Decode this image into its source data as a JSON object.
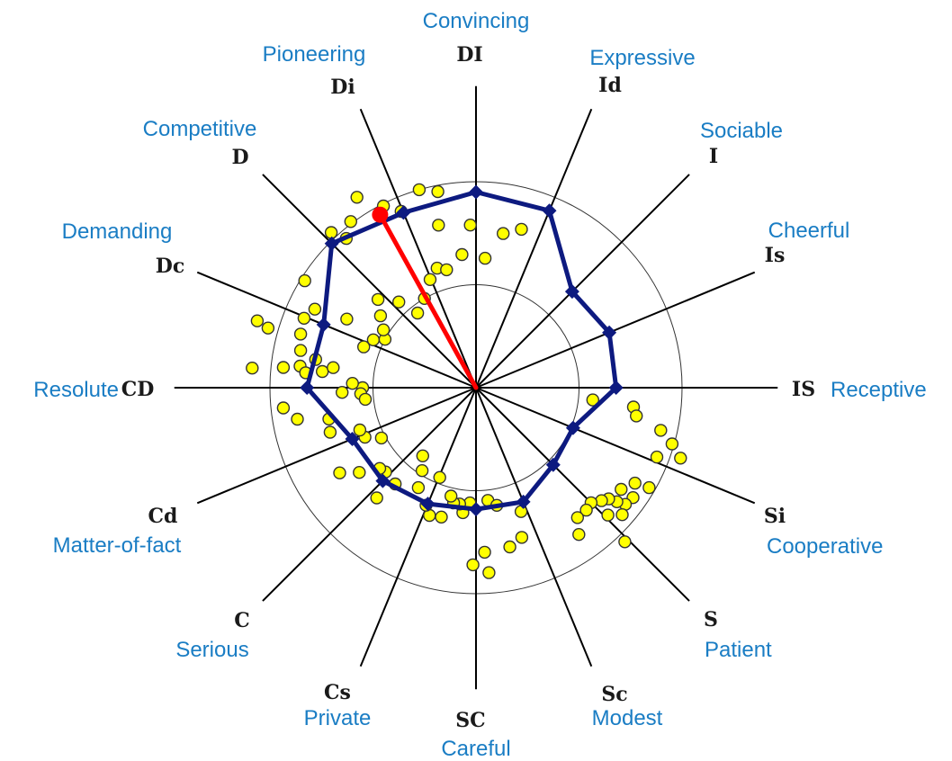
{
  "chart_data": {
    "type": "scatter",
    "subtype": "radar-scatter",
    "title": "",
    "axes": [
      {
        "code": "DI",
        "label": "Convincing"
      },
      {
        "code": "Id",
        "label": "Expressive"
      },
      {
        "code": "I",
        "label": "Sociable"
      },
      {
        "code": "Is",
        "label": "Cheerful"
      },
      {
        "code": "IS",
        "label": "Receptive"
      },
      {
        "code": "Si",
        "label": "Cooperative"
      },
      {
        "code": "S",
        "label": "Patient"
      },
      {
        "code": "Sc",
        "label": "Modest"
      },
      {
        "code": "SC",
        "label": "Careful"
      },
      {
        "code": "Cs",
        "label": "Private"
      },
      {
        "code": "C",
        "label": "Serious"
      },
      {
        "code": "Cd",
        "label": "Matter-of-fact"
      },
      {
        "code": "CD",
        "label": "Resolute"
      },
      {
        "code": "Dc",
        "label": "Demanding"
      },
      {
        "code": "D",
        "label": "Competitive"
      },
      {
        "code": "Di",
        "label": "Pioneering"
      }
    ],
    "start_angle_deg": 90,
    "direction": "clockwise",
    "rings": [
      0.5,
      1.0
    ],
    "max_radius": 1.2,
    "profile": [
      0.95,
      0.93,
      0.66,
      0.7,
      0.68,
      0.51,
      0.53,
      0.6,
      0.59,
      0.61,
      0.64,
      0.65,
      0.82,
      0.8,
      0.99,
      0.92
    ],
    "highlight": {
      "angle_deg": 119,
      "r": 0.96
    },
    "points": [
      [
        106,
        1.0
      ],
      [
        101,
        0.97
      ],
      [
        113,
        0.93
      ],
      [
        103,
        0.81
      ],
      [
        117,
        0.99
      ],
      [
        122,
        1.09
      ],
      [
        127,
        1.01
      ],
      [
        131,
        0.96
      ],
      [
        133,
        1.03
      ],
      [
        148,
        0.98
      ],
      [
        158,
        0.9
      ],
      [
        154,
        0.87
      ],
      [
        152,
        0.71
      ],
      [
        163,
        0.89
      ],
      [
        168,
        0.87
      ],
      [
        173,
        0.86
      ],
      [
        174,
        0.94
      ],
      [
        175,
        1.09
      ],
      [
        -6,
        0.57
      ],
      [
        -7,
        0.77
      ],
      [
        -10,
        0.79
      ],
      [
        -13,
        0.92
      ],
      [
        -16,
        0.99
      ],
      [
        -19,
        1.05
      ],
      [
        -21,
        0.94
      ],
      [
        -30,
        0.97
      ],
      [
        -31,
        0.9
      ],
      [
        -35,
        0.93
      ],
      [
        -35,
        0.86
      ],
      [
        -38,
        0.92
      ],
      [
        -39,
        0.88
      ],
      [
        -40,
        0.84
      ],
      [
        -42,
        0.82
      ],
      [
        -45,
        0.79
      ],
      [
        -48,
        0.8
      ],
      [
        -41,
        0.94
      ],
      [
        -44,
        0.89
      ],
      [
        -46,
        1.04
      ],
      [
        -52,
        0.8
      ],
      [
        -55,
        0.87
      ],
      [
        -70,
        0.64
      ],
      [
        -73,
        0.76
      ],
      [
        -78,
        0.79
      ],
      [
        -84,
        0.55
      ],
      [
        -80,
        0.58
      ],
      [
        -86,
        0.9
      ],
      [
        -87,
        0.8
      ],
      [
        -91,
        0.86
      ],
      [
        -93,
        0.56
      ],
      [
        -96,
        0.61
      ],
      [
        -98,
        0.57
      ],
      [
        -101,
        0.57
      ],
      [
        -103,
        0.54
      ],
      [
        -105,
        0.65
      ],
      [
        -112,
        0.47
      ],
      [
        -110,
        0.66
      ],
      [
        -113,
        0.62
      ],
      [
        -120,
        0.56
      ],
      [
        -123,
        0.48
      ],
      [
        -128,
        0.42
      ],
      [
        -130,
        0.61
      ],
      [
        -132,
        0.72
      ],
      [
        -137,
        0.6
      ],
      [
        -140,
        0.61
      ],
      [
        -144,
        0.7
      ],
      [
        -148,
        0.78
      ],
      [
        -152,
        0.52
      ],
      [
        -156,
        0.59
      ],
      [
        -160,
        0.6
      ],
      [
        -163,
        0.74
      ],
      [
        -168,
        0.73
      ],
      [
        -170,
        0.88
      ],
      [
        -174,
        0.94
      ],
      [
        -180,
        0.55
      ],
      [
        -177,
        0.56
      ],
      [
        -174,
        0.54
      ],
      [
        -178,
        0.65
      ],
      [
        -182,
        0.6
      ],
      [
        -185,
        0.83
      ],
      [
        -186,
        0.75
      ],
      [
        -188,
        0.7
      ],
      [
        -190,
        0.79
      ],
      [
        -196,
        1.05
      ],
      [
        -197,
        1.11
      ],
      [
        -200,
        0.58
      ],
      [
        -205,
        0.55
      ],
      [
        -208,
        0.5
      ],
      [
        -212,
        0.53
      ],
      [
        -217,
        0.58
      ],
      [
        -222,
        0.64
      ],
      [
        -228,
        0.56
      ],
      [
        -232,
        0.46
      ],
      [
        -240,
        0.5
      ],
      [
        -247,
        0.57
      ],
      [
        -252,
        0.61
      ],
      [
        -256,
        0.59
      ],
      [
        -264,
        0.65
      ],
      [
        -268,
        0.79
      ],
      [
        -274,
        0.63
      ],
      [
        -280,
        0.76
      ],
      [
        -286,
        0.8
      ]
    ]
  }
}
